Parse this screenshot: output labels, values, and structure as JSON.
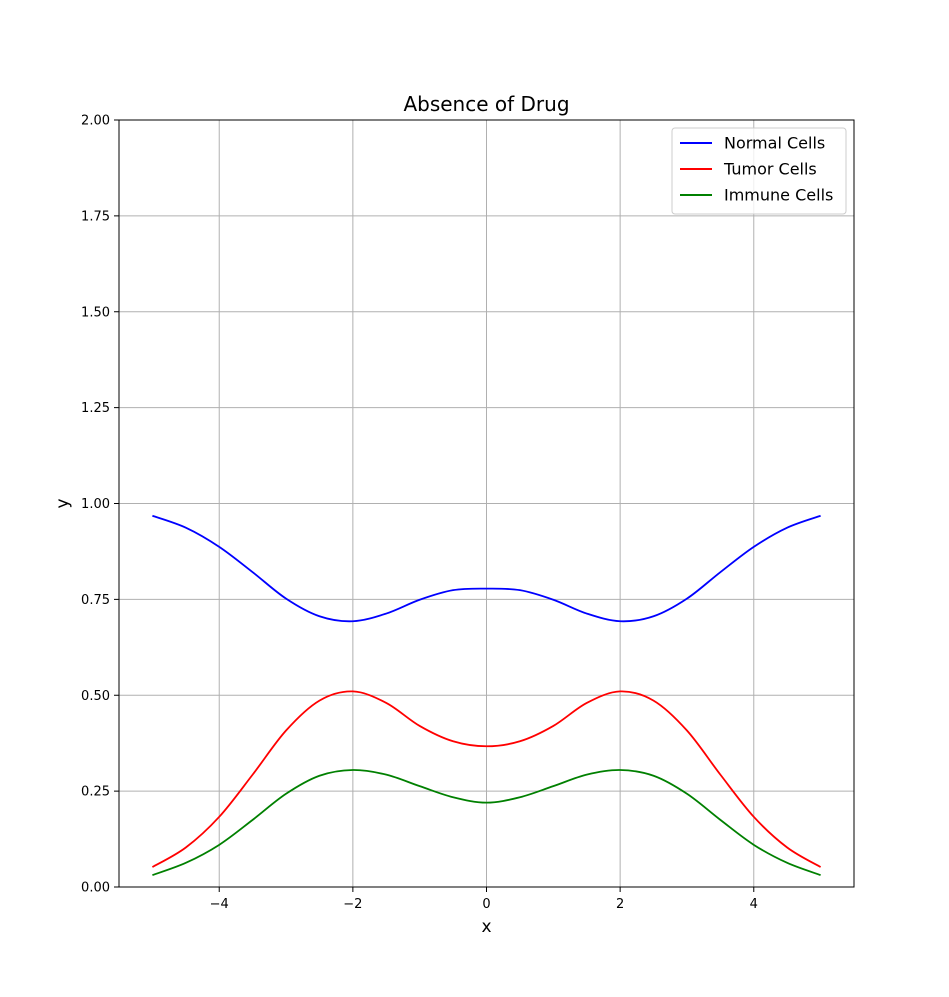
{
  "chart_data": {
    "type": "line",
    "title": "Absence of Drug",
    "xlabel": "x",
    "ylabel": "y",
    "xlim": [
      -5.5,
      5.5
    ],
    "ylim": [
      0,
      2
    ],
    "x_ticks": [
      -4,
      -2,
      0,
      2,
      4
    ],
    "x_tick_labels": [
      "−4",
      "−2",
      "0",
      "2",
      "4"
    ],
    "y_ticks": [
      0,
      0.25,
      0.5,
      0.75,
      1.0,
      1.25,
      1.5,
      1.75,
      2.0
    ],
    "y_tick_labels": [
      "0.00",
      "0.25",
      "0.50",
      "0.75",
      "1.00",
      "1.25",
      "1.50",
      "1.75",
      "2.00"
    ],
    "grid": true,
    "legend_position": "top-right",
    "x": [
      -5,
      -4.5,
      -4,
      -3.5,
      -3,
      -2.5,
      -2,
      -1.5,
      -1,
      -0.5,
      0,
      0.5,
      1,
      1.5,
      2,
      2.5,
      3,
      3.5,
      4,
      4.5,
      5
    ],
    "series": [
      {
        "name": "Normal Cells",
        "color": "#0000ff",
        "values": [
          0.968,
          0.937,
          0.887,
          0.821,
          0.752,
          0.706,
          0.693,
          0.713,
          0.749,
          0.774,
          0.778,
          0.774,
          0.749,
          0.713,
          0.693,
          0.706,
          0.752,
          0.821,
          0.887,
          0.937,
          0.968
        ]
      },
      {
        "name": "Tumor Cells",
        "color": "#ff0000",
        "values": [
          0.052,
          0.103,
          0.183,
          0.293,
          0.408,
          0.486,
          0.51,
          0.48,
          0.42,
          0.38,
          0.367,
          0.38,
          0.42,
          0.48,
          0.51,
          0.486,
          0.408,
          0.293,
          0.183,
          0.103,
          0.052
        ]
      },
      {
        "name": "Immune Cells",
        "color": "#008000",
        "values": [
          0.031,
          0.063,
          0.11,
          0.175,
          0.243,
          0.29,
          0.305,
          0.293,
          0.263,
          0.234,
          0.22,
          0.234,
          0.263,
          0.293,
          0.305,
          0.29,
          0.243,
          0.175,
          0.11,
          0.063,
          0.031
        ]
      }
    ]
  }
}
